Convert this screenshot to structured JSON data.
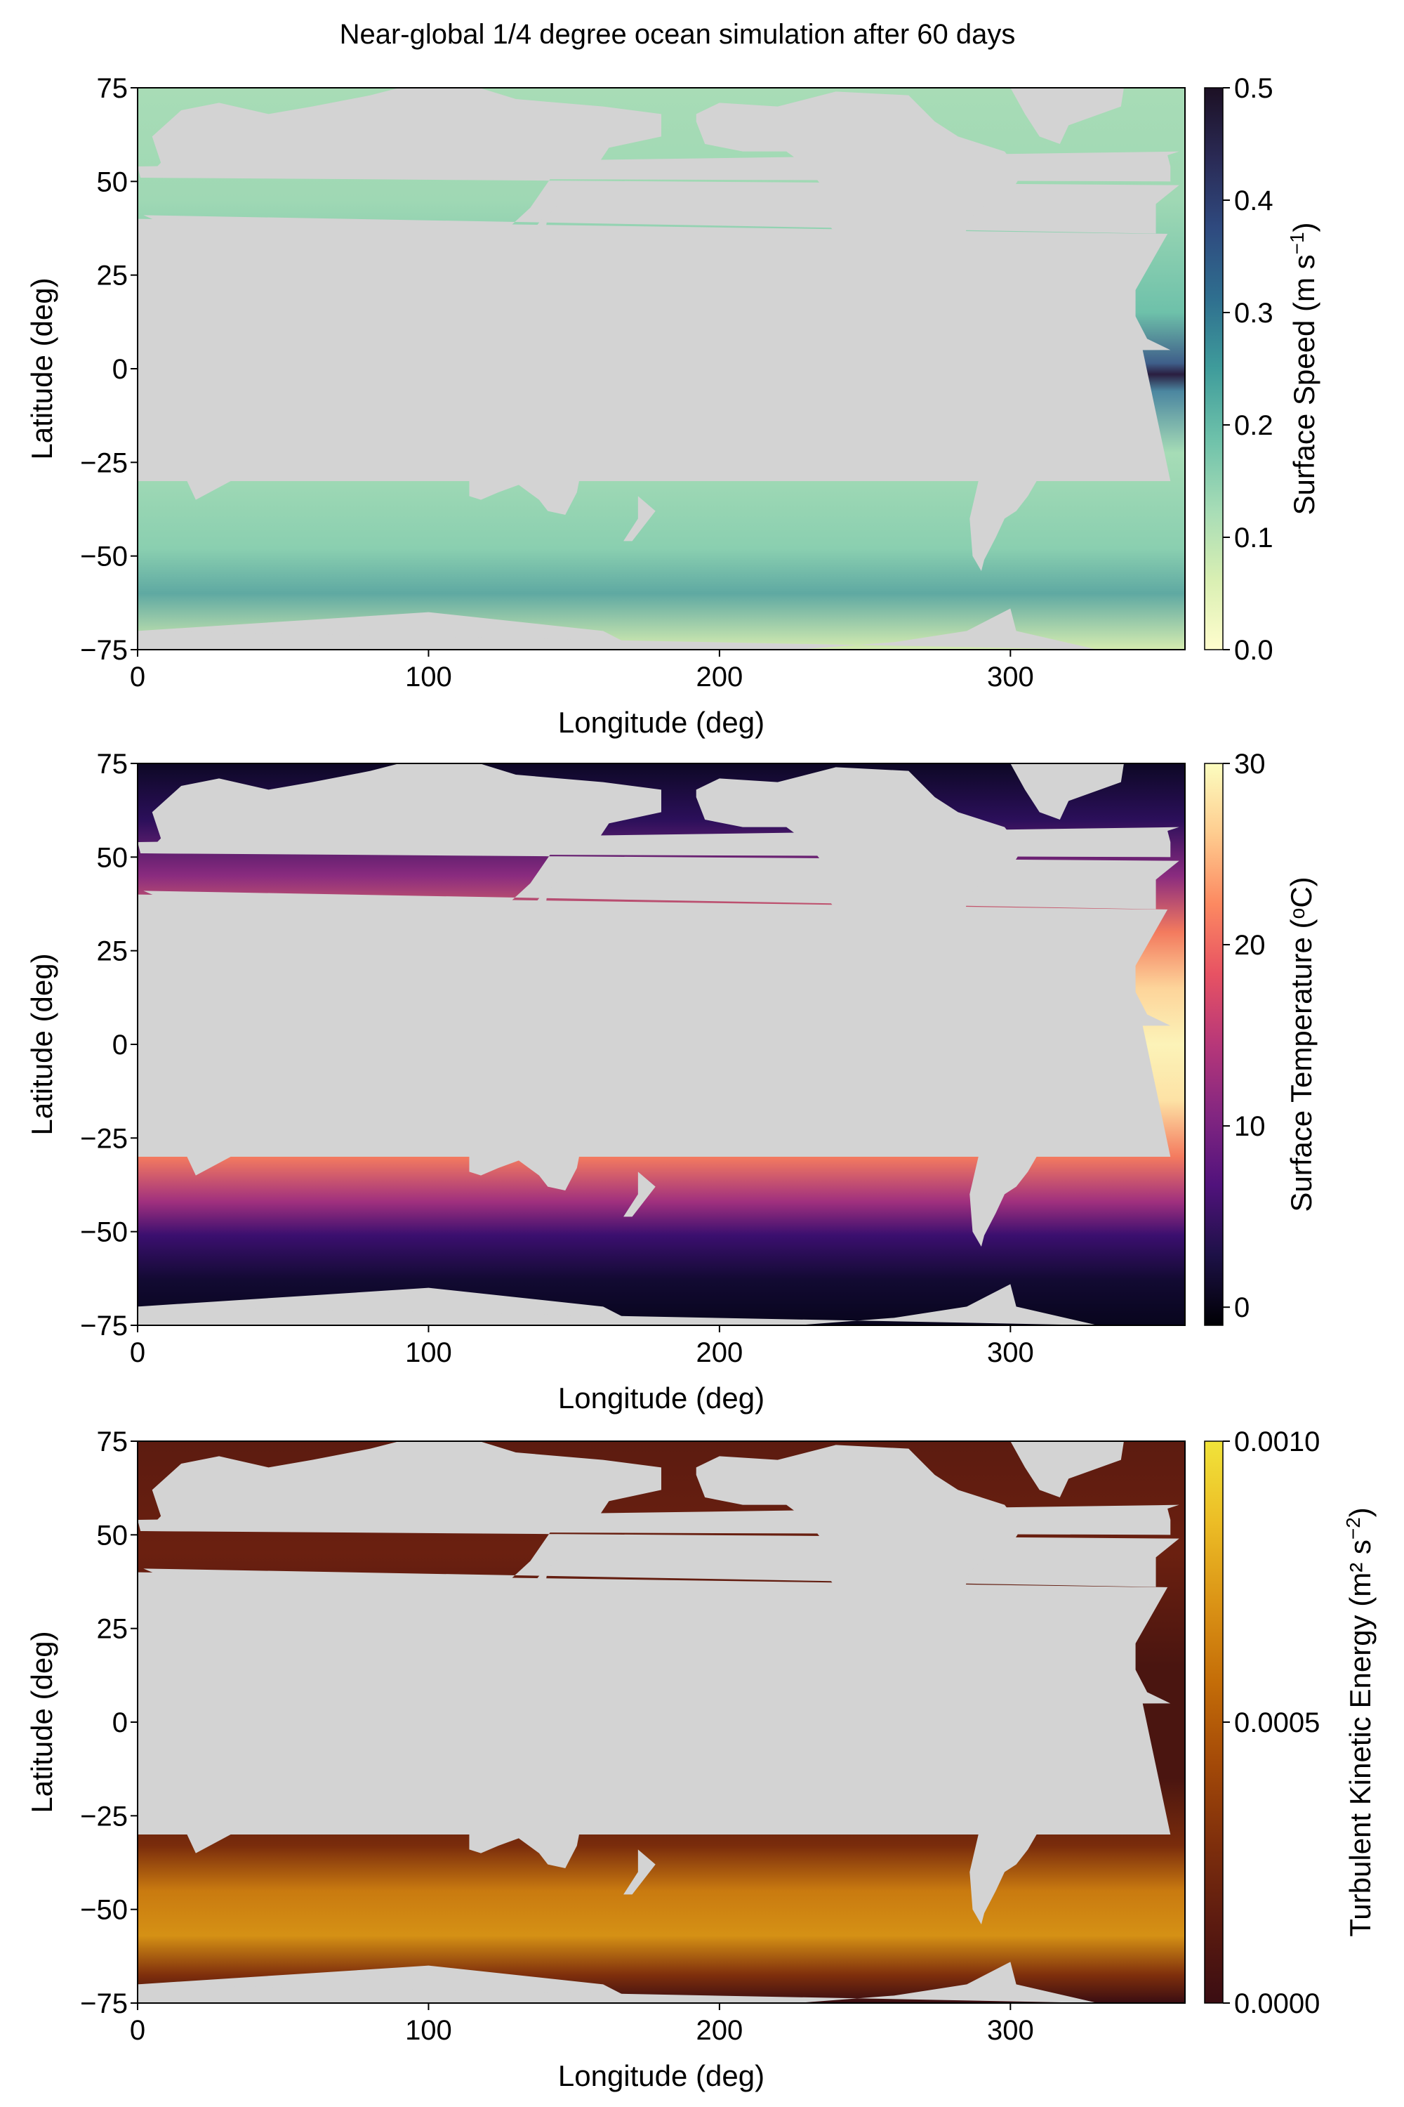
{
  "figure": {
    "title": "Near-global 1/4 degree ocean simulation after 60 days"
  },
  "colors": {
    "land": "#d3d3d3",
    "speed_cmap": [
      "#fffdcd",
      "#d9efb3",
      "#a6dcb6",
      "#6ec1aa",
      "#3f9c9b",
      "#2f6f8f",
      "#2f4a7f",
      "#2a2a55",
      "#1c1024"
    ],
    "temp_cmap": [
      "#000004",
      "#1d1147",
      "#51127c",
      "#832681",
      "#b73779",
      "#e75263",
      "#fc8961",
      "#fecc8f",
      "#fcfdbf"
    ],
    "tke_cmap": [
      "#3a0d12",
      "#5c1b10",
      "#7f2f0c",
      "#a44a08",
      "#c46d08",
      "#db9416",
      "#ecbd26",
      "#f1e33a"
    ]
  },
  "chart_data": [
    {
      "type": "heatmap",
      "title": "Near-global 1/4 degree ocean simulation after 60 days",
      "xlabel": "Longitude (deg)",
      "ylabel": "Latitude (deg)",
      "xlim": [
        0,
        360
      ],
      "ylim": [
        -75,
        75
      ],
      "xticks": [
        0,
        100,
        200,
        300
      ],
      "xtick_labels": [
        "0",
        "100",
        "200",
        "300"
      ],
      "yticks": [
        75,
        50,
        25,
        0,
        -25,
        -50,
        -75
      ],
      "ytick_labels": [
        "75",
        "50",
        "25",
        "0",
        "−25",
        "−50",
        "−75"
      ],
      "colorbar": {
        "label_text": "Surface Speed (m s",
        "label_sup": "−1",
        "label_end": ")",
        "range": [
          0,
          0.5
        ],
        "ticks": [
          0.0,
          0.1,
          0.2,
          0.3,
          0.4,
          0.5
        ],
        "tick_labels": [
          "0.0",
          "0.1",
          "0.2",
          "0.3",
          "0.4",
          "0.5"
        ],
        "colormap": "speed_cmap"
      }
    },
    {
      "type": "heatmap",
      "xlabel": "Longitude (deg)",
      "ylabel": "Latitude (deg)",
      "xlim": [
        0,
        360
      ],
      "ylim": [
        -75,
        75
      ],
      "xticks": [
        0,
        100,
        200,
        300
      ],
      "xtick_labels": [
        "0",
        "100",
        "200",
        "300"
      ],
      "yticks": [
        75,
        50,
        25,
        0,
        -25,
        -50,
        -75
      ],
      "ytick_labels": [
        "75",
        "50",
        "25",
        "0",
        "−25",
        "−50",
        "−75"
      ],
      "colorbar": {
        "label_text": "Surface Temperature (ᵒC)",
        "label_sup": "",
        "label_end": "",
        "range": [
          -1,
          30
        ],
        "ticks": [
          0,
          10,
          20,
          30
        ],
        "tick_labels": [
          "0",
          "10",
          "20",
          "30"
        ],
        "colormap": "temp_cmap"
      }
    },
    {
      "type": "heatmap",
      "xlabel": "Longitude (deg)",
      "ylabel": "Latitude (deg)",
      "xlim": [
        0,
        360
      ],
      "ylim": [
        -75,
        75
      ],
      "xticks": [
        0,
        100,
        200,
        300
      ],
      "xtick_labels": [
        "0",
        "100",
        "200",
        "300"
      ],
      "yticks": [
        75,
        50,
        25,
        0,
        -25,
        -50,
        -75
      ],
      "ytick_labels": [
        "75",
        "50",
        "25",
        "0",
        "−25",
        "−50",
        "−75"
      ],
      "colorbar": {
        "label_text": "Turbulent Kinetic Energy (m² s",
        "label_sup": "−2",
        "label_end": ")",
        "range": [
          0,
          0.001
        ],
        "ticks": [
          0.0,
          0.0005,
          0.001
        ],
        "tick_labels": [
          "0.0000",
          "0.0005",
          "0.0010"
        ],
        "colormap": "tke_cmap"
      }
    }
  ]
}
